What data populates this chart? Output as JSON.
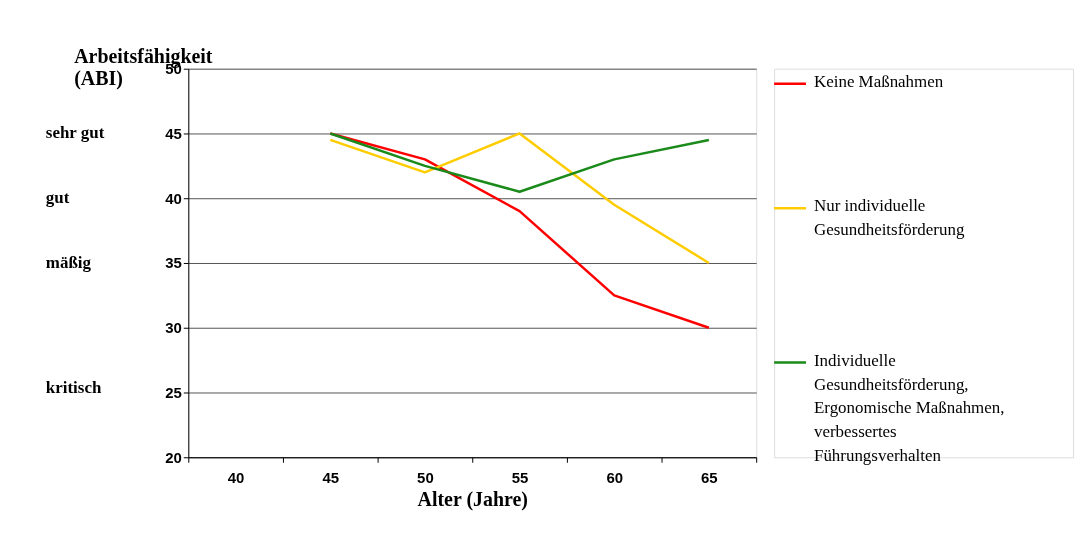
{
  "chart_data": {
    "type": "line",
    "xlabel": "Alter (Jahre)",
    "ylabel": "Arbeitsfähigkeit (ABI)",
    "categories": [
      "40",
      "45",
      "50",
      "55",
      "60",
      "65"
    ],
    "series": [
      {
        "name": "Keine Maßnahmen",
        "color": "#ff0000",
        "values": [
          null,
          45,
          43,
          39,
          32.5,
          30
        ]
      },
      {
        "name": "Nur individuelle Gesundheitsförderung",
        "color": "#ffcc00",
        "values": [
          null,
          44.5,
          42,
          45,
          39.5,
          35
        ]
      },
      {
        "name": "Individuelle Gesundheitsförderung, Ergonomische Maßnahmen, verbessertes Führungsverhalten",
        "color": "#1a8a1a",
        "values": [
          null,
          45,
          42.5,
          40.5,
          43,
          44.5
        ]
      }
    ],
    "ylim": [
      20,
      50
    ],
    "yticks": [
      20,
      25,
      30,
      35,
      40,
      45,
      50
    ],
    "grid": "y",
    "legend": "right",
    "marker": "none",
    "line_style": "solid",
    "annotations": [
      "sehr gut",
      "gut",
      "mäßig",
      "kritisch"
    ]
  }
}
